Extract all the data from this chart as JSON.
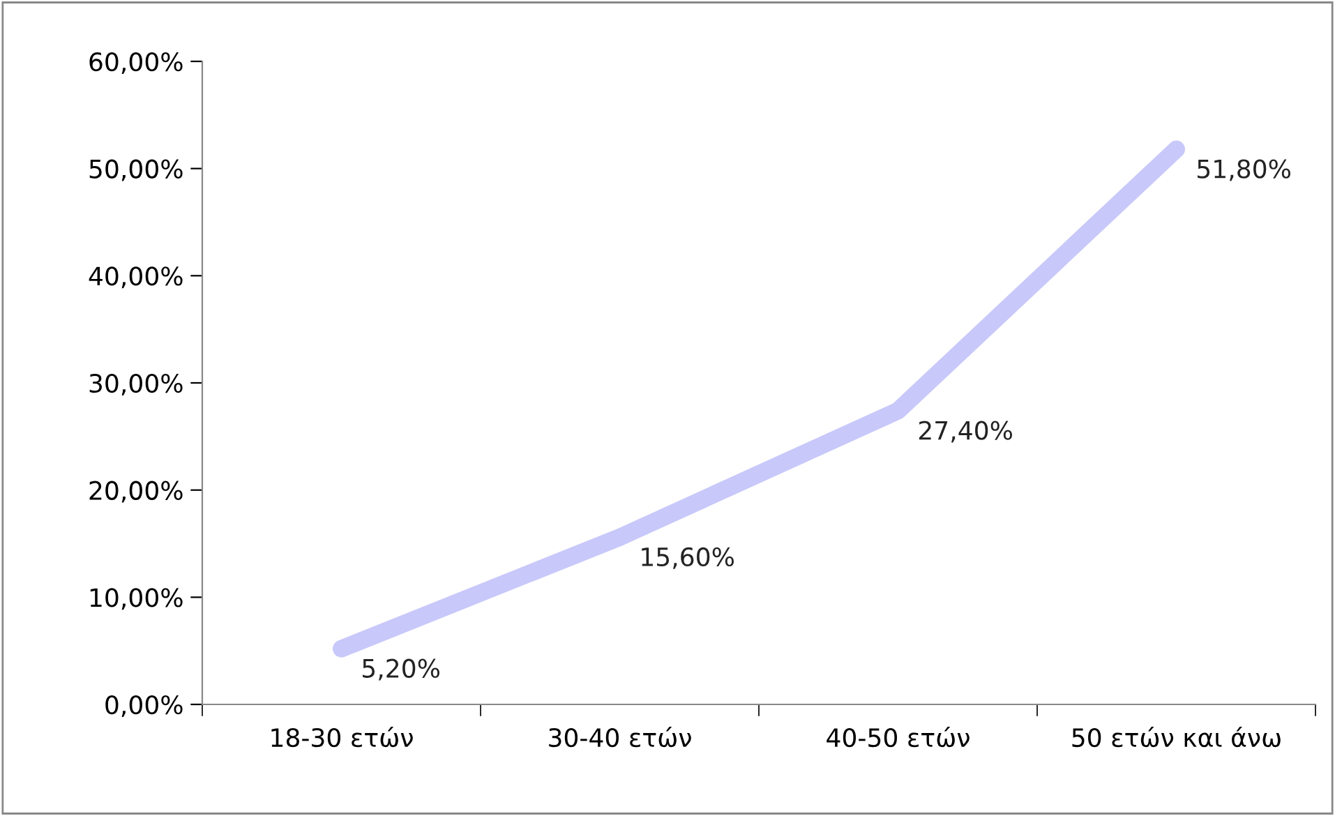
{
  "chart_data": {
    "type": "line",
    "categories": [
      "18-30 ετών",
      "30-40 ετών",
      "40-50 ετών",
      "50 ετών και άνω"
    ],
    "series": [
      {
        "color": "#c8c8fa",
        "values": [
          5.2,
          15.6,
          27.4,
          51.8
        ],
        "value_labels": [
          "5,20%",
          "15,60%",
          "27,40%",
          "51,80%"
        ]
      }
    ],
    "ylim": [
      0,
      60
    ],
    "yticks": [
      {
        "value": 0,
        "label": "0,00%"
      },
      {
        "value": 10,
        "label": "10,00%"
      },
      {
        "value": 20,
        "label": "20,00%"
      },
      {
        "value": 30,
        "label": "30,00%"
      },
      {
        "value": 40,
        "label": "40,00%"
      },
      {
        "value": 50,
        "label": "50,00%"
      },
      {
        "value": 60,
        "label": "60,00%"
      }
    ],
    "grid": false,
    "legend": false,
    "line_style": "solid"
  }
}
